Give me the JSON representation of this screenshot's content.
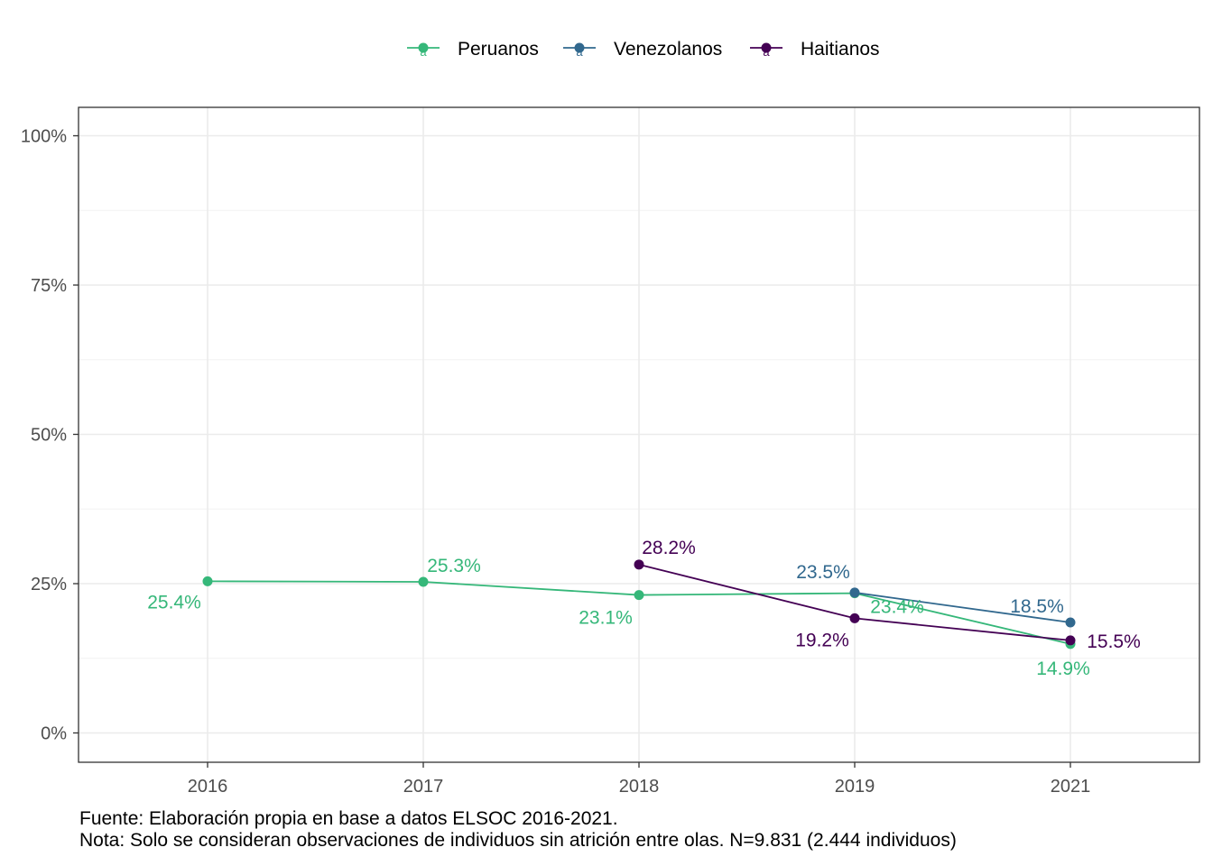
{
  "chart_data": {
    "type": "line",
    "x": [
      "2016",
      "2017",
      "2018",
      "2019",
      "2021"
    ],
    "ylim": [
      0,
      1
    ],
    "y_ticks": [
      "0%",
      "25%",
      "50%",
      "75%",
      "100%"
    ],
    "grid": true,
    "legend_position": "top",
    "series": [
      {
        "name": "Peruanos",
        "color": "#35B779",
        "values": [
          0.254,
          0.253,
          0.231,
          0.234,
          0.149
        ],
        "labels": [
          "25.4%",
          "25.3%",
          "23.1%",
          "23.4%",
          "14.9%"
        ]
      },
      {
        "name": "Venezolanos",
        "color": "#31688E",
        "values": [
          null,
          null,
          null,
          0.235,
          0.185
        ],
        "labels": [
          null,
          null,
          null,
          "23.5%",
          "18.5%"
        ]
      },
      {
        "name": "Haitianos",
        "color": "#440154",
        "values": [
          null,
          null,
          0.282,
          0.192,
          0.155
        ],
        "labels": [
          null,
          null,
          "28.2%",
          "19.2%",
          "15.5%"
        ]
      }
    ]
  },
  "caption": {
    "source": "Fuente: Elaboración propia en base a datos ELSOC 2016-2021.",
    "note": "Nota: Solo se consideran observaciones de individuos sin atrición entre olas. N=9.831 (2.444 individuos)"
  }
}
